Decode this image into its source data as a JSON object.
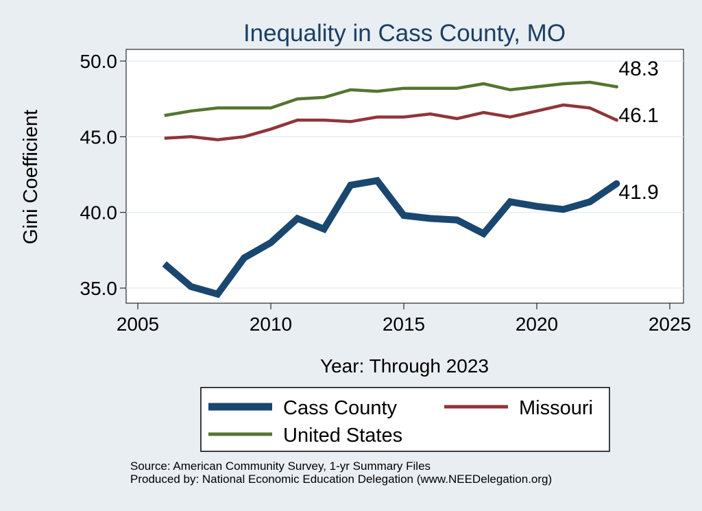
{
  "chart_data": {
    "type": "line",
    "title": "Inequality in Cass County, MO",
    "xlabel": "Year: Through 2023",
    "ylabel": "Gini Coefficient",
    "xlim": [
      2005,
      2025
    ],
    "ylim": [
      34,
      50.8
    ],
    "xticks": [
      2005,
      2010,
      2015,
      2020,
      2025
    ],
    "yticks": [
      35.0,
      40.0,
      45.0,
      50.0
    ],
    "ytick_labels": [
      "35.0",
      "40.0",
      "45.0",
      "50.0"
    ],
    "grid": true,
    "legend_position": "bottom",
    "x": [
      2006,
      2007,
      2008,
      2009,
      2010,
      2011,
      2012,
      2013,
      2014,
      2015,
      2016,
      2017,
      2018,
      2019,
      2020,
      2021,
      2022,
      2023
    ],
    "series": [
      {
        "name": "Cass County",
        "color": "#1a476f",
        "weight": "thick",
        "values": [
          36.6,
          35.1,
          34.6,
          37.0,
          38.0,
          39.6,
          38.9,
          41.8,
          42.1,
          39.8,
          39.6,
          39.5,
          38.6,
          40.7,
          40.4,
          40.2,
          40.7,
          41.9
        ],
        "end_label": "41.9"
      },
      {
        "name": "Missouri",
        "color": "#90353b",
        "weight": "medium",
        "values": [
          44.9,
          45.0,
          44.8,
          45.0,
          45.5,
          46.1,
          46.1,
          46.0,
          46.3,
          46.3,
          46.5,
          46.2,
          46.6,
          46.3,
          46.7,
          47.1,
          46.9,
          46.1
        ],
        "end_label": "46.1"
      },
      {
        "name": "United States",
        "color": "#55752f",
        "weight": "medium",
        "values": [
          46.4,
          46.7,
          46.9,
          46.9,
          46.9,
          47.5,
          47.6,
          48.1,
          48.0,
          48.2,
          48.2,
          48.2,
          48.5,
          48.1,
          48.3,
          48.5,
          48.6,
          48.3
        ],
        "end_label": "48.3"
      }
    ],
    "legend": [
      {
        "label": "Cass County",
        "color": "#1a476f"
      },
      {
        "label": "Missouri",
        "color": "#90353b"
      },
      {
        "label": "United States",
        "color": "#55752f"
      }
    ],
    "notes": [
      "Source: American Community Survey, 1-yr Summary Files",
      "Produced by: National Economic Education Delegation (www.NEEDelegation.org)"
    ]
  }
}
